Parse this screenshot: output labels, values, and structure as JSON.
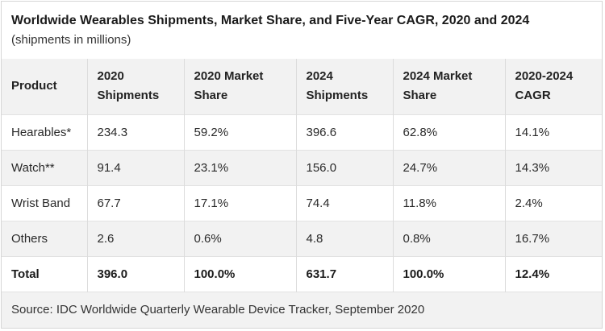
{
  "header": {
    "title": "Worldwide Wearables Shipments, Market Share, and Five-Year CAGR, 2020 and 2024",
    "subtitle": "(shipments in millions)"
  },
  "table": {
    "columns": [
      "Product",
      "2020 Shipments",
      "2020 Market Share",
      "2024 Shipments",
      "2024 Market Share",
      "2020-2024 CAGR"
    ],
    "rows": [
      [
        "Hearables*",
        "234.3",
        "59.2%",
        "396.6",
        "62.8%",
        "14.1%"
      ],
      [
        "Watch**",
        "91.4",
        "23.1%",
        "156.0",
        "24.7%",
        "14.3%"
      ],
      [
        "Wrist Band",
        "67.7",
        "17.1%",
        "74.4",
        "11.8%",
        "2.4%"
      ],
      [
        "Others",
        "2.6",
        "0.6%",
        "4.8",
        "0.8%",
        "16.7%"
      ]
    ],
    "total": [
      "Total",
      "396.0",
      "100.0%",
      "631.7",
      "100.0%",
      "12.4%"
    ]
  },
  "footer": {
    "source": "Source: IDC Worldwide Quarterly Wearable Device Tracker, September 2020"
  }
}
